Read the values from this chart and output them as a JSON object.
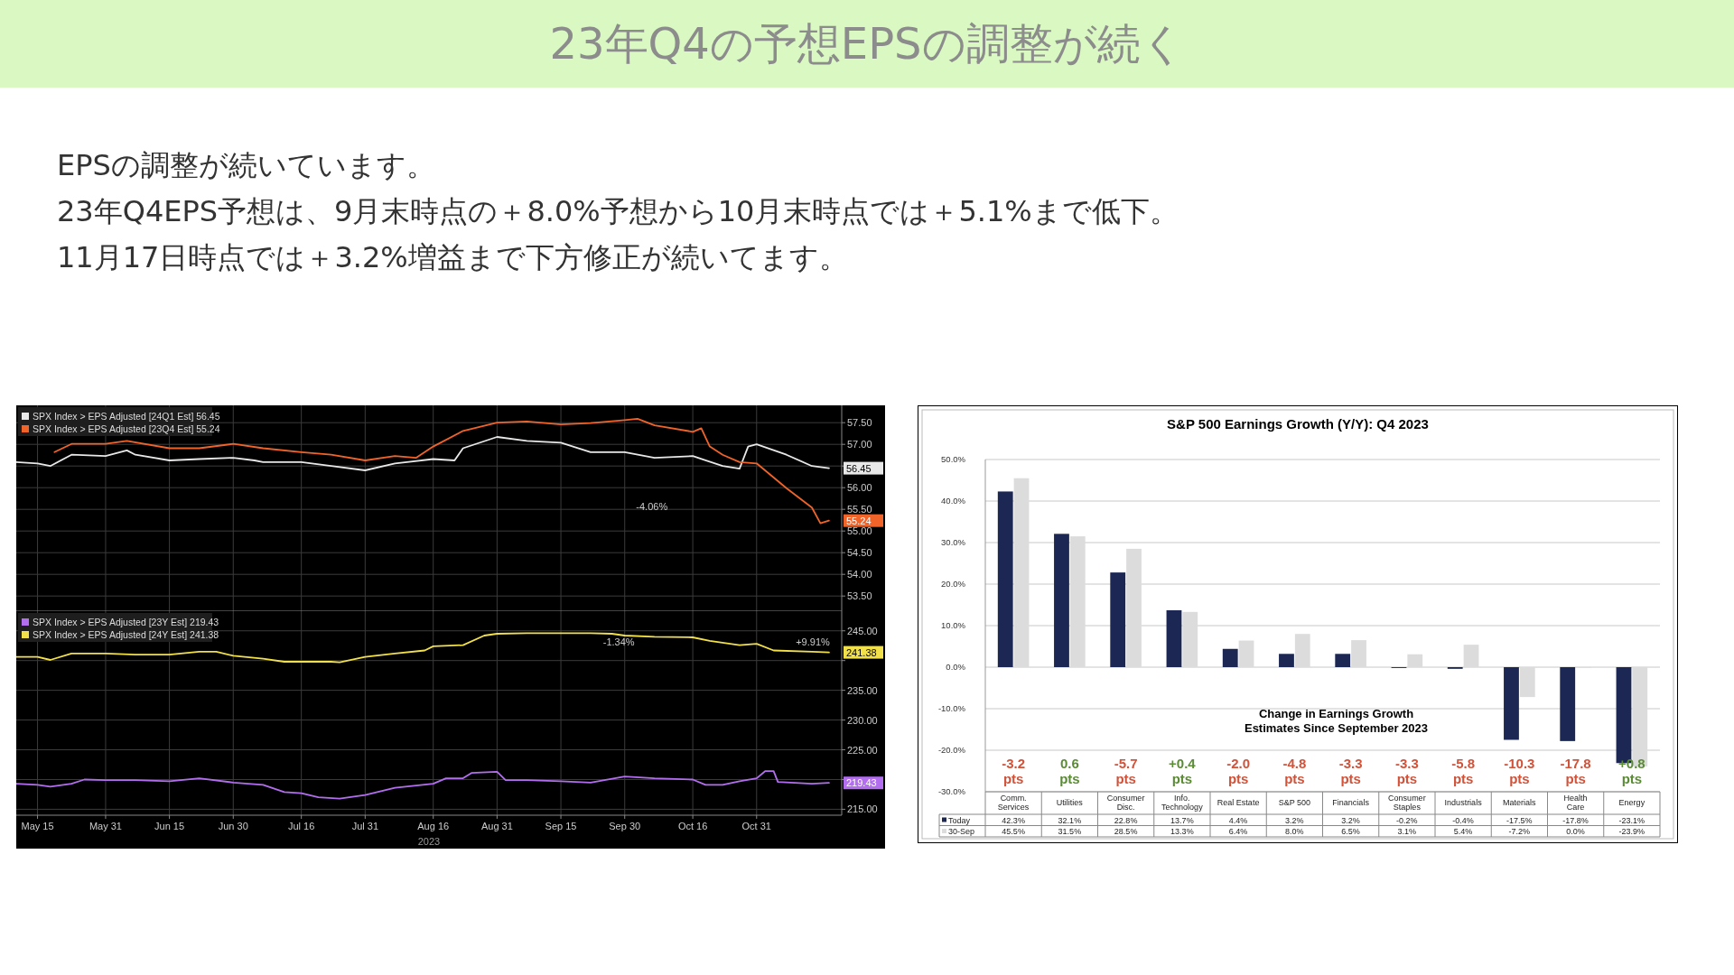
{
  "chart_data": [
    {
      "type": "other",
      "title": "23年Q4の予想EPSの調整が続く",
      "annotations": [
        "EPSの調整が続いています。",
        "23年Q4EPS予想は、9月末時点の＋8.0%予想から10月末時点では＋5.1%まで低下。",
        "11月17日時点では＋3.2%増益まで下方修正が続いてます。"
      ]
    },
    {
      "type": "line",
      "xlim": [
        "2023-05-10",
        "2023-11-20"
      ],
      "xticks": [
        {
          "value": "2023-05-15",
          "label": null
        },
        {
          "value": "2023-05-31",
          "label": null
        },
        {
          "value": "2023-06-15",
          "label": null
        },
        {
          "value": "2023-06-30",
          "label": null
        },
        {
          "value": "2023-07-16",
          "label": null
        },
        {
          "value": "2023-07-31",
          "label": null
        },
        {
          "value": "2023-08-16",
          "label": null
        },
        {
          "value": "2023-08-31",
          "label": null
        },
        {
          "value": "2023-09-15",
          "label": null
        },
        {
          "value": "2023-09-30",
          "label": null
        },
        {
          "value": "2023-10-16",
          "label": null
        },
        {
          "value": "2023-10-31",
          "label": null
        }
      ],
      "tick_labels": "y",
      "ylim": [
        53.15,
        57.9
      ],
      "yticks": [
        {
          "value": 53.5,
          "label": "53.50"
        },
        {
          "value": 54,
          "label": "54.00"
        },
        {
          "value": 54.5,
          "label": "54.50"
        },
        {
          "value": 55,
          "label": "55.00"
        },
        {
          "value": 55.5,
          "label": "55.50"
        },
        {
          "value": 56,
          "label": "56.00"
        },
        {
          "value": 56.5,
          "label": null
        },
        {
          "value": 57,
          "label": "57.00"
        },
        {
          "value": 57.5,
          "label": "57.50"
        }
      ],
      "grid": true,
      "legend": "top left",
      "series": [
        {
          "name": "SPX Index > EPS Adjusted [24Q1 Est]  56.45",
          "color": "#e8e8e8",
          "x": [
            "2023-05-10",
            "2023-05-15",
            "2023-05-18",
            "2023-05-23",
            "2023-05-31",
            "2023-06-05",
            "2023-06-07",
            "2023-06-15",
            "2023-06-22",
            "2023-06-30",
            "2023-07-05",
            "2023-07-07",
            "2023-07-16",
            "2023-07-23",
            "2023-07-31",
            "2023-08-07",
            "2023-08-16",
            "2023-08-21",
            "2023-08-23",
            "2023-08-31",
            "2023-09-07",
            "2023-09-15",
            "2023-09-22",
            "2023-09-30",
            "2023-10-07",
            "2023-10-16",
            "2023-10-23",
            "2023-10-27",
            "2023-10-29",
            "2023-10-31",
            "2023-11-07",
            "2023-11-13",
            "2023-11-17"
          ],
          "values": [
            56.59,
            56.56,
            56.5,
            56.76,
            56.73,
            56.86,
            56.76,
            56.63,
            56.66,
            56.69,
            56.63,
            56.59,
            56.59,
            56.5,
            56.4,
            56.56,
            56.66,
            56.63,
            56.91,
            57.17,
            57.08,
            57.04,
            56.82,
            56.82,
            56.69,
            56.73,
            56.5,
            56.44,
            56.95,
            57.0,
            56.76,
            56.5,
            56.45
          ],
          "value_labels": [
            null,
            null,
            null,
            null,
            null,
            null,
            null,
            null,
            null,
            null,
            null,
            null,
            null,
            null,
            null,
            null,
            null,
            null,
            null,
            null,
            null,
            null,
            null,
            null,
            null,
            null,
            null,
            null,
            null,
            null,
            null,
            null,
            "56.45"
          ]
        },
        {
          "name": "SPX Index > EPS Adjusted [23Q4 Est]  55.24",
          "color": "#f0642a",
          "x": [
            "2023-05-19",
            "2023-05-23",
            "2023-05-31",
            "2023-06-05",
            "2023-06-15",
            "2023-06-22",
            "2023-06-30",
            "2023-07-07",
            "2023-07-16",
            "2023-07-23",
            "2023-07-31",
            "2023-08-07",
            "2023-08-12",
            "2023-08-16",
            "2023-08-23",
            "2023-08-31",
            "2023-09-07",
            "2023-09-15",
            "2023-09-22",
            "2023-09-30",
            "2023-10-03",
            "2023-10-07",
            "2023-10-16",
            "2023-10-18",
            "2023-10-20",
            "2023-10-23",
            "2023-10-27",
            "2023-10-31",
            "2023-11-07",
            "2023-11-13",
            "2023-11-15",
            "2023-11-17"
          ],
          "values": [
            56.82,
            57.01,
            57.01,
            57.08,
            56.91,
            56.91,
            57.01,
            56.91,
            56.82,
            56.76,
            56.63,
            56.73,
            56.69,
            56.95,
            57.31,
            57.5,
            57.53,
            57.46,
            57.49,
            57.56,
            57.59,
            57.44,
            57.29,
            57.37,
            56.95,
            56.76,
            56.59,
            56.56,
            55.99,
            55.54,
            55.18,
            55.24
          ],
          "value_labels": [
            null,
            null,
            null,
            null,
            null,
            null,
            null,
            null,
            null,
            null,
            null,
            null,
            null,
            null,
            null,
            null,
            null,
            null,
            null,
            null,
            null,
            null,
            null,
            null,
            null,
            null,
            null,
            null,
            null,
            null,
            null,
            "55.24"
          ]
        }
      ],
      "annotations": [
        "-4.06%"
      ]
    },
    {
      "type": "line",
      "xlim": [
        "2023-05-10",
        "2023-11-20"
      ],
      "xticks": [
        {
          "value": "2023-05-15",
          "label": "May 15"
        },
        {
          "value": "2023-05-31",
          "label": "May 31"
        },
        {
          "value": "2023-06-15",
          "label": "Jun 15"
        },
        {
          "value": "2023-06-30",
          "label": "Jun 30"
        },
        {
          "value": "2023-07-16",
          "label": "Jul 16"
        },
        {
          "value": "2023-07-31",
          "label": "Jul 31"
        },
        {
          "value": "2023-08-16",
          "label": "Aug 16"
        },
        {
          "value": "2023-08-31",
          "label": "Aug 31"
        },
        {
          "value": "2023-09-15",
          "label": "Sep 15"
        },
        {
          "value": "2023-09-30",
          "label": "Sep 30"
        },
        {
          "value": "2023-10-16",
          "label": "Oct 16"
        },
        {
          "value": "2023-10-31",
          "label": "Oct 31"
        }
      ],
      "xlabel": "2023",
      "ylim": [
        214,
        248.3
      ],
      "yticks": [
        {
          "value": 215,
          "label": "215.00"
        },
        {
          "value": 220,
          "label": null
        },
        {
          "value": 225,
          "label": "225.00"
        },
        {
          "value": 230,
          "label": "230.00"
        },
        {
          "value": 235,
          "label": "235.00"
        },
        {
          "value": 240,
          "label": null
        },
        {
          "value": 245,
          "label": "245.00"
        }
      ],
      "grid": true,
      "legend": "top left",
      "series": [
        {
          "name": "SPX Index > EPS Adjusted [23Y Est]  219.43",
          "color": "#b36ef0",
          "x": [
            "2023-05-10",
            "2023-05-15",
            "2023-05-18",
            "2023-05-23",
            "2023-05-26",
            "2023-05-31",
            "2023-06-07",
            "2023-06-15",
            "2023-06-22",
            "2023-06-30",
            "2023-07-07",
            "2023-07-12",
            "2023-07-16",
            "2023-07-20",
            "2023-07-25",
            "2023-07-31",
            "2023-08-07",
            "2023-08-16",
            "2023-08-19",
            "2023-08-23",
            "2023-08-25",
            "2023-08-31",
            "2023-09-02",
            "2023-09-07",
            "2023-09-15",
            "2023-09-22",
            "2023-09-30",
            "2023-10-07",
            "2023-10-16",
            "2023-10-19",
            "2023-10-23",
            "2023-10-27",
            "2023-10-31",
            "2023-11-02",
            "2023-11-04",
            "2023-11-05",
            "2023-11-13",
            "2023-11-17"
          ],
          "values": [
            219.3,
            219.1,
            218.8,
            219.3,
            220.0,
            219.9,
            219.9,
            219.7,
            220.2,
            219.5,
            219.1,
            217.9,
            217.7,
            217.0,
            216.8,
            217.4,
            218.6,
            219.3,
            220.2,
            220.2,
            221.1,
            221.3,
            219.9,
            219.9,
            219.7,
            219.5,
            220.5,
            220.2,
            220.0,
            219.1,
            219.1,
            219.7,
            220.2,
            221.4,
            221.4,
            219.6,
            219.3,
            219.43
          ],
          "value_labels": [
            null,
            null,
            null,
            null,
            null,
            null,
            null,
            null,
            null,
            null,
            null,
            null,
            null,
            null,
            null,
            null,
            null,
            null,
            null,
            null,
            null,
            null,
            null,
            null,
            null,
            null,
            null,
            null,
            null,
            null,
            null,
            null,
            null,
            null,
            null,
            null,
            null,
            "219.43"
          ]
        },
        {
          "name": "SPX Index > EPS Adjusted [24Y Est]  241.38",
          "color": "#f2e04a",
          "x": [
            "2023-05-10",
            "2023-05-15",
            "2023-05-18",
            "2023-05-23",
            "2023-05-31",
            "2023-06-07",
            "2023-06-15",
            "2023-06-22",
            "2023-06-26",
            "2023-06-30",
            "2023-07-07",
            "2023-07-12",
            "2023-07-16",
            "2023-07-23",
            "2023-07-25",
            "2023-07-31",
            "2023-08-07",
            "2023-08-14",
            "2023-08-16",
            "2023-08-23",
            "2023-08-28",
            "2023-08-31",
            "2023-09-07",
            "2023-09-15",
            "2023-09-22",
            "2023-09-27",
            "2023-09-30",
            "2023-10-07",
            "2023-10-16",
            "2023-10-20",
            "2023-10-27",
            "2023-10-31",
            "2023-11-04",
            "2023-11-13",
            "2023-11-17"
          ],
          "values": [
            240.6,
            240.6,
            240.1,
            241.2,
            241.2,
            241.0,
            241.0,
            241.5,
            241.5,
            240.8,
            240.3,
            239.8,
            239.8,
            239.8,
            239.7,
            240.6,
            241.2,
            241.7,
            242.4,
            242.6,
            244.2,
            244.5,
            244.6,
            244.6,
            244.6,
            244.5,
            244.2,
            244.0,
            243.9,
            243.3,
            242.6,
            242.8,
            241.7,
            241.5,
            241.38
          ],
          "value_labels": [
            null,
            null,
            null,
            null,
            null,
            null,
            null,
            null,
            null,
            null,
            null,
            null,
            null,
            null,
            null,
            null,
            null,
            null,
            null,
            null,
            null,
            null,
            null,
            null,
            null,
            null,
            null,
            null,
            null,
            null,
            null,
            null,
            null,
            null,
            "241.38"
          ]
        }
      ],
      "annotations": [
        "-1.34%",
        "+9.91%"
      ]
    },
    {
      "type": "bar",
      "title": "S&P 500 Earnings Growth (Y/Y): Q4 2023",
      "categories": [
        "Comm.\nServices",
        "Utilities",
        "Consumer\nDisc.",
        "Info.\nTechnology",
        "Real Estate",
        "S&P 500",
        "Financials",
        "Consumer\nStaples",
        "Industrials",
        "Materials",
        "Health\nCare",
        "Energy"
      ],
      "ylim": [
        -30,
        50
      ],
      "yticks": [
        {
          "value": -30,
          "label": "-30.0%"
        },
        {
          "value": -20,
          "label": "-20.0%"
        },
        {
          "value": -10,
          "label": "-10.0%"
        },
        {
          "value": 0,
          "label": "0.0%"
        },
        {
          "value": 10,
          "label": "10.0%"
        },
        {
          "value": 20,
          "label": "20.0%"
        },
        {
          "value": 30,
          "label": "30.0%"
        },
        {
          "value": 40,
          "label": "40.0%"
        },
        {
          "value": 50,
          "label": "50.0%"
        }
      ],
      "grid": "y",
      "legend": "bottom left",
      "series": [
        {
          "name": "Today",
          "color": "#1c2853",
          "values": [
            42.3,
            32.1,
            22.8,
            13.7,
            4.4,
            3.2,
            3.2,
            -0.2,
            -0.4,
            -17.5,
            -17.8,
            -23.1
          ],
          "value_labels": [
            "42.3%",
            "32.1%",
            "22.8%",
            "13.7%",
            "4.4%",
            "3.2%",
            "3.2%",
            "-0.2%",
            "-0.4%",
            "-17.5%",
            "-17.8%",
            "-23.1%"
          ]
        },
        {
          "name": "30-Sep",
          "color": "#dcdcdc",
          "values": [
            45.5,
            31.5,
            28.5,
            13.3,
            6.4,
            8.0,
            6.5,
            3.1,
            5.4,
            -7.2,
            0.0,
            -23.9
          ],
          "value_labels": [
            "45.5%",
            "31.5%",
            "28.5%",
            "13.3%",
            "6.4%",
            "8.0%",
            "6.5%",
            "3.1%",
            "5.4%",
            "-7.2%",
            "0.0%",
            "-23.9%"
          ]
        }
      ],
      "annotations": [
        "Change in Earnings Growth\nEstimates Since September 2023",
        "-3.2\npts",
        "0.6\npts",
        "-5.7\npts",
        "+0.4\npts",
        "-2.0\npts",
        "-4.8\npts",
        "-3.3\npts",
        "-3.3\npts",
        "-5.8\npts",
        "-10.3\npts",
        "-17.8\npts",
        "+0.8\npts"
      ]
    }
  ]
}
